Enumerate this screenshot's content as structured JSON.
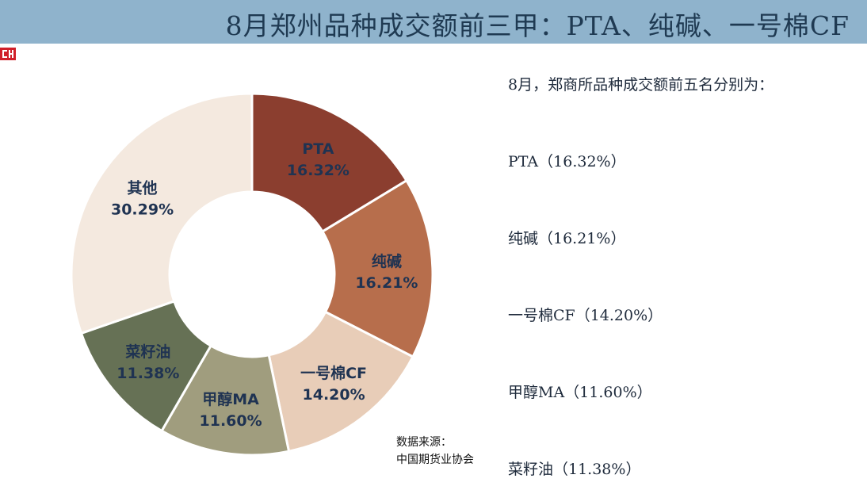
{
  "header": {
    "title": "8月郑州品种成交额前三甲：PTA、纯碱、一号棉CF",
    "bar_color": "#8fb3cc"
  },
  "logo": {
    "icon": "cfa-logo-icon",
    "color": "#d0202a"
  },
  "summary": {
    "intro": "8月，郑商所品种成交额前五名分别为：",
    "items": [
      "PTA（16.32%）",
      "纯碱（16.21%）",
      "一号棉CF（14.20%）",
      "甲醇MA（11.60%）",
      "菜籽油（11.38%）"
    ]
  },
  "source": {
    "label": "数据来源：",
    "org": "中国期货业协会"
  },
  "chart_data": {
    "type": "pie",
    "variant": "donut",
    "title": "",
    "categories": [
      "PTA",
      "纯碱",
      "一号棉CF",
      "甲醇MA",
      "菜籽油",
      "其他"
    ],
    "values": [
      16.32,
      16.21,
      14.2,
      11.6,
      11.38,
      30.29
    ],
    "value_labels": [
      "16.32%",
      "16.21%",
      "14.20%",
      "11.60%",
      "11.38%",
      "30.29%"
    ],
    "colors": [
      "#8b3e2f",
      "#b76e4c",
      "#e8cdb8",
      "#a09d7e",
      "#667155",
      "#f4e9df"
    ],
    "start_angle_deg": 0,
    "direction": "clockwise",
    "legend": "none"
  }
}
